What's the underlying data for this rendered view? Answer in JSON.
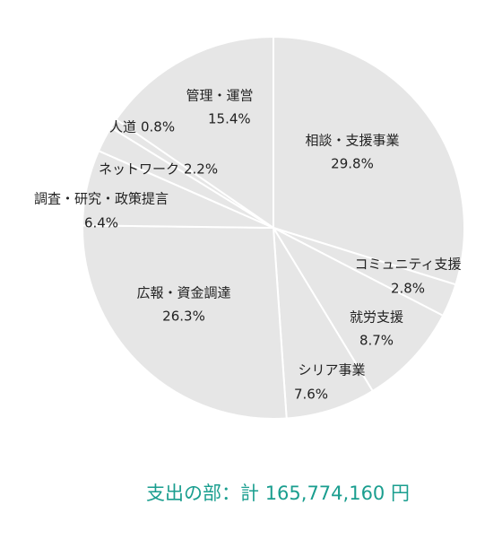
{
  "chart_data": {
    "type": "pie",
    "categories": [
      "相談・支援事業",
      "コミュニティ支援",
      "就労支援",
      "シリア事業",
      "広報・資金調達",
      "調査・研究・政策提言",
      "ネットワーク",
      "人道",
      "管理・運営"
    ],
    "values": [
      29.8,
      2.8,
      8.7,
      7.6,
      26.3,
      6.4,
      2.2,
      0.8,
      15.4
    ],
    "value_labels": [
      "29.8%",
      "2.8%",
      "8.7%",
      "7.6%",
      "26.3%",
      "6.4%",
      "2.2%",
      "0.8%",
      "15.4%"
    ],
    "color": "#e6e6e6",
    "footer": "支出の部：計 165,774,160 円",
    "footer_color": "#1a9e8f"
  }
}
